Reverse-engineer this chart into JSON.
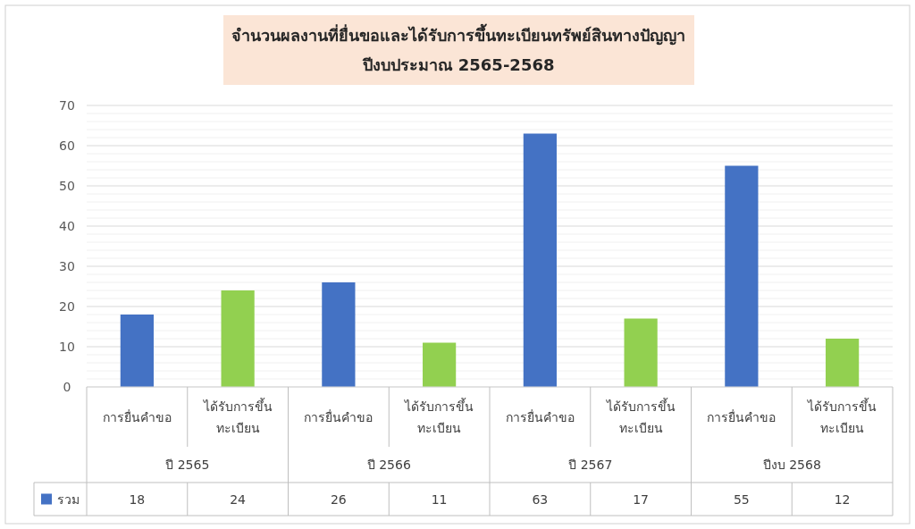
{
  "chart_data": {
    "type": "bar",
    "title": "จำนวนผลงานที่ยื่นขอและได้รับการขึ้นทะเบียนทรัพย์สินทางปัญญา",
    "subtitle": "ปีงบประมาณ 2565-2568",
    "categories": [
      "การยื่นคำขอ",
      "ได้รับการขึ้นทะเบียน",
      "การยื่นคำขอ",
      "ได้รับการขึ้นทะเบียน",
      "การยื่นคำขอ",
      "ได้รับการขึ้นทะเบียน",
      "การยื่นคำขอ",
      "ได้รับการขึ้นทะเบียน"
    ],
    "annotations": [
      "ปี 2565",
      "ปี 2566",
      "ปี 2567",
      "ปีงบ 2568"
    ],
    "series": [
      {
        "name": "รวม",
        "color": "#4472c4",
        "colors": [
          "#4472c4",
          "#92d050",
          "#4472c4",
          "#92d050",
          "#4472c4",
          "#92d050",
          "#4472c4",
          "#92d050"
        ],
        "values": [
          18,
          24,
          26,
          11,
          63,
          17,
          55,
          12
        ]
      }
    ],
    "ylim": [
      0,
      70
    ],
    "yticks": [
      0,
      {
        "value": 2,
        "label": null
      },
      {
        "value": 4,
        "label": null
      },
      {
        "value": 6,
        "label": null
      },
      {
        "value": 8,
        "label": null
      },
      10,
      {
        "value": 12,
        "label": null
      },
      {
        "value": 14,
        "label": null
      },
      {
        "value": 16,
        "label": null
      },
      {
        "value": 18,
        "label": null
      },
      20,
      {
        "value": 22,
        "label": null
      },
      {
        "value": 24,
        "label": null
      },
      {
        "value": 26,
        "label": null
      },
      {
        "value": 28,
        "label": null
      },
      30,
      {
        "value": 32,
        "label": null
      },
      {
        "value": 34,
        "label": null
      },
      {
        "value": 36,
        "label": null
      },
      {
        "value": 38,
        "label": null
      },
      40,
      {
        "value": 42,
        "label": null
      },
      {
        "value": 44,
        "label": null
      },
      {
        "value": 46,
        "label": null
      },
      {
        "value": 48,
        "label": null
      },
      50,
      {
        "value": 52,
        "label": null
      },
      {
        "value": 54,
        "label": null
      },
      {
        "value": 56,
        "label": null
      },
      {
        "value": 58,
        "label": null
      },
      60,
      {
        "value": 62,
        "label": null
      },
      {
        "value": 64,
        "label": null
      },
      {
        "value": 66,
        "label": null
      },
      {
        "value": 68,
        "label": null
      },
      70
    ],
    "grid": "y",
    "data_labels": true,
    "legend": "bottom left"
  }
}
